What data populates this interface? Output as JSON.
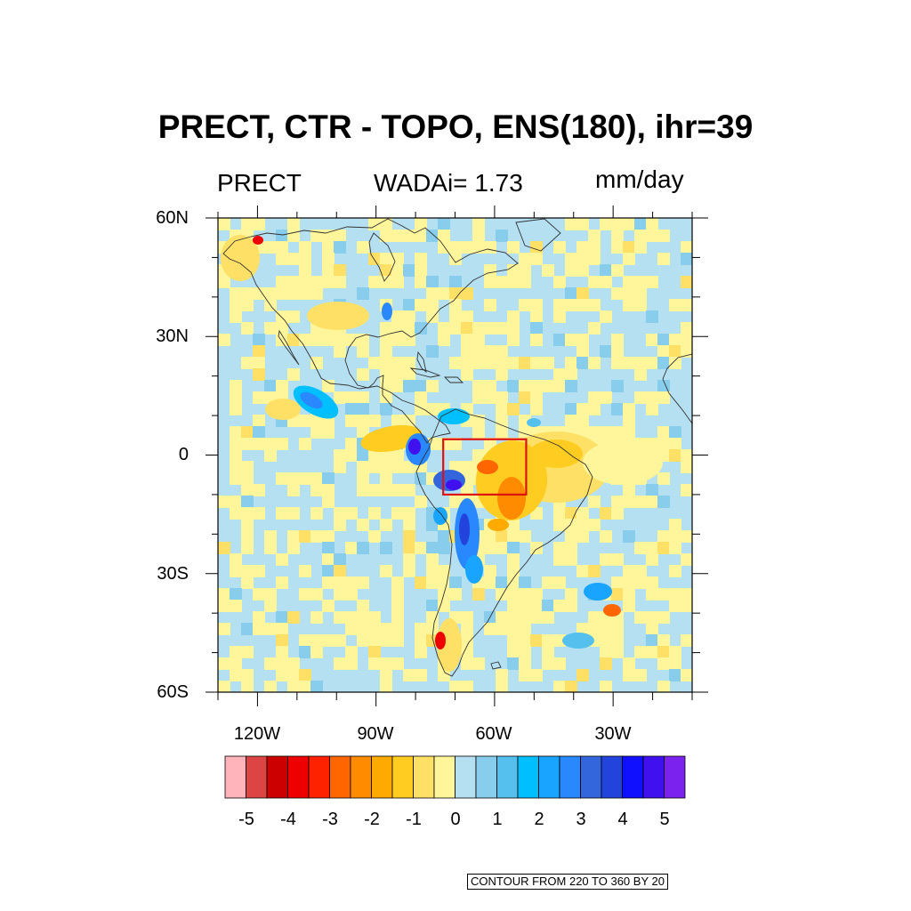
{
  "title": "PRECT, CTR - TOPO, ENS(180), ihr=39",
  "subtitle_left": "PRECT",
  "subtitle_center": "WADAi= 1.73",
  "subtitle_right": "mm/day",
  "lat_ticks": [
    {
      "label": "60N",
      "lat": 60
    },
    {
      "label": "30N",
      "lat": 30
    },
    {
      "label": "0",
      "lat": 0
    },
    {
      "label": "30S",
      "lat": -30
    },
    {
      "label": "60S",
      "lat": -60
    }
  ],
  "lon_ticks": [
    {
      "label": "120W",
      "lon": -120
    },
    {
      "label": "90W",
      "lon": -90
    },
    {
      "label": "60W",
      "lon": -60
    },
    {
      "label": "30W",
      "lon": -30
    }
  ],
  "map_extent": {
    "lon": [
      -130,
      -10
    ],
    "lat": [
      -60,
      60
    ]
  },
  "highlight_box": {
    "lon": [
      -73,
      -52
    ],
    "lat": [
      -10,
      4
    ],
    "color": "#dd1111"
  },
  "colorbar": {
    "colors": [
      "#ffb3ba",
      "#dd4444",
      "#cc0000",
      "#ee0000",
      "#ff2200",
      "#ff6600",
      "#ff8c00",
      "#ffaa00",
      "#ffcc22",
      "#ffe066",
      "#fff59a",
      "#b4e0f2",
      "#88cdeb",
      "#55c0ee",
      "#00bfff",
      "#18a4ff",
      "#2a88ff",
      "#3366dd",
      "#2244dd",
      "#1010ff",
      "#4010ee",
      "#7b22ee"
    ],
    "labels": [
      {
        "text": "-5",
        "value": -5
      },
      {
        "text": "-4",
        "value": -4
      },
      {
        "text": "-3",
        "value": -3
      },
      {
        "text": "-2",
        "value": -2
      },
      {
        "text": "-1",
        "value": -1
      },
      {
        "text": "0",
        "value": 0
      },
      {
        "text": "1",
        "value": 1
      },
      {
        "text": "2",
        "value": 2
      },
      {
        "text": "3",
        "value": 3
      },
      {
        "text": "4",
        "value": 4
      },
      {
        "text": "5",
        "value": 5
      }
    ],
    "min": -5.5,
    "max": 5.5
  },
  "contour_note": "CONTOUR FROM 220 TO 360 BY 20"
}
